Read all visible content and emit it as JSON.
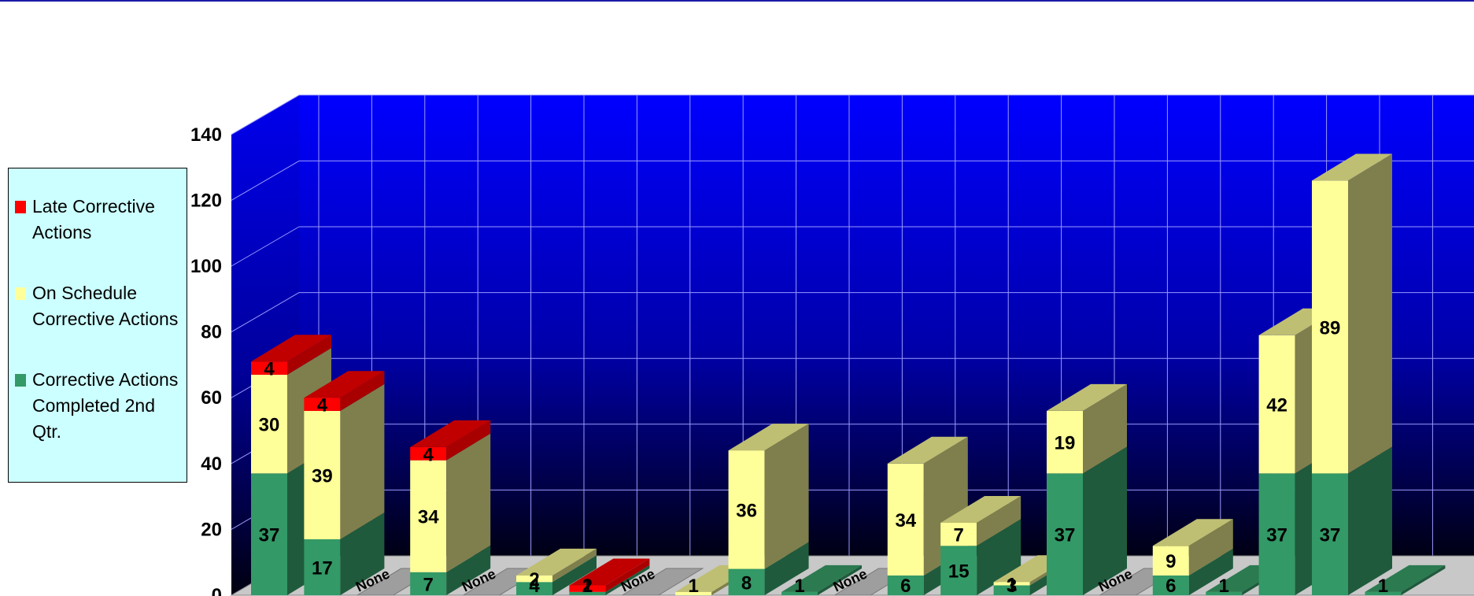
{
  "chart_data": {
    "type": "bar",
    "stacked": true,
    "three_d": true,
    "ylim": [
      0,
      140
    ],
    "yticks": [
      "0",
      "20",
      "40",
      "60",
      "80",
      "100",
      "120",
      "140"
    ],
    "grid": true,
    "legend_position": "left",
    "series": [
      {
        "name": "Corrective Actions Completed 2nd Qtr.",
        "color": "#339966",
        "values": [
          37,
          17,
          0,
          7,
          0,
          4,
          1,
          0,
          0,
          8,
          1,
          0,
          6,
          15,
          3,
          37,
          0,
          6,
          1,
          37,
          37,
          1
        ]
      },
      {
        "name": "On Schedule Corrective Actions",
        "color": "#ffff99",
        "values": [
          30,
          39,
          0,
          34,
          0,
          2,
          0,
          0,
          1,
          36,
          0,
          0,
          34,
          7,
          1,
          19,
          0,
          9,
          0,
          42,
          89,
          0
        ]
      },
      {
        "name": "Late Corrective Actions",
        "color": "#ff0000",
        "values": [
          4,
          4,
          0,
          4,
          0,
          0,
          2,
          0,
          0,
          0,
          0,
          0,
          0,
          0,
          0,
          0,
          0,
          0,
          0,
          0,
          0,
          0
        ]
      }
    ],
    "category_labels": [
      "",
      "",
      "None",
      "",
      "None",
      "",
      "",
      "None",
      "",
      "",
      "",
      "None",
      "",
      "",
      "",
      "",
      "None",
      "",
      "",
      "",
      "",
      ""
    ],
    "data_labels": [
      [
        "37",
        "30",
        "4"
      ],
      [
        "17",
        "39",
        "4"
      ],
      [
        "",
        "",
        ""
      ],
      [
        "7",
        "34",
        "4"
      ],
      [
        "",
        "",
        ""
      ],
      [
        "4",
        "2",
        ""
      ],
      [
        "1",
        "",
        "2"
      ],
      [
        "",
        "",
        ""
      ],
      [
        "",
        "1",
        ""
      ],
      [
        "8",
        "36",
        ""
      ],
      [
        "1",
        "",
        ""
      ],
      [
        "",
        "",
        ""
      ],
      [
        "6",
        "34",
        ""
      ],
      [
        "15",
        "7",
        ""
      ],
      [
        "3",
        "1",
        ""
      ],
      [
        "37",
        "19",
        ""
      ],
      [
        "",
        "",
        ""
      ],
      [
        "6",
        "9",
        ""
      ],
      [
        "1",
        "",
        ""
      ],
      [
        "37",
        "42",
        ""
      ],
      [
        "37",
        "89",
        ""
      ],
      [
        "1",
        "",
        ""
      ]
    ]
  },
  "legend": {
    "items": [
      {
        "label": "Late Corrective Actions",
        "color": "#ff0000"
      },
      {
        "label": "On Schedule Corrective Actions",
        "color": "#ffff99"
      },
      {
        "label": "Corrective Actions Completed 2nd Qtr.",
        "color": "#339966"
      }
    ]
  }
}
